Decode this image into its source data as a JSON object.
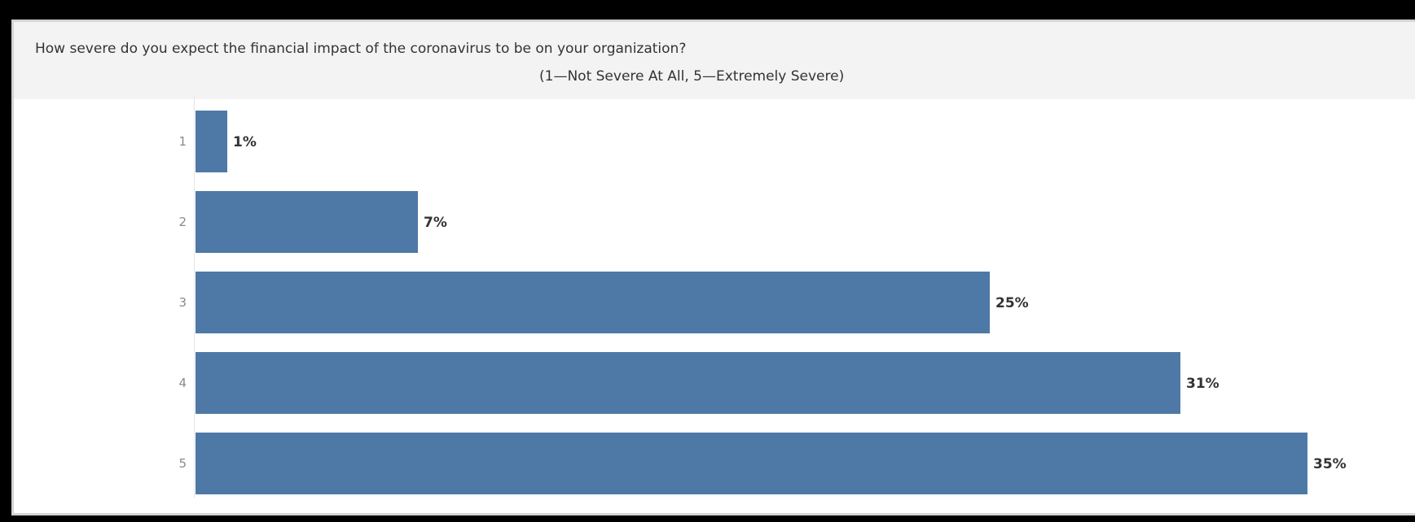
{
  "title": "How severe do you expect the financial impact of the coronavirus to be on your organization?",
  "subtitle": "(1—Not Severe At All, 5—Extremely Severe)",
  "chart_data": {
    "type": "bar",
    "orientation": "horizontal",
    "title": "How severe do you expect the financial impact of the coronavirus to be on your organization?",
    "subtitle": "(1—Not Severe At All, 5—Extremely Severe)",
    "categories": [
      "1",
      "2",
      "3",
      "4",
      "5"
    ],
    "values": [
      1,
      7,
      25,
      31,
      35
    ],
    "value_labels": [
      "1%",
      "7%",
      "25%",
      "31%",
      "35%"
    ],
    "xlabel": "",
    "ylabel": "",
    "xlim": [
      0,
      35
    ],
    "grid": false,
    "legend": "none",
    "bar_color": "#4e79a7"
  }
}
